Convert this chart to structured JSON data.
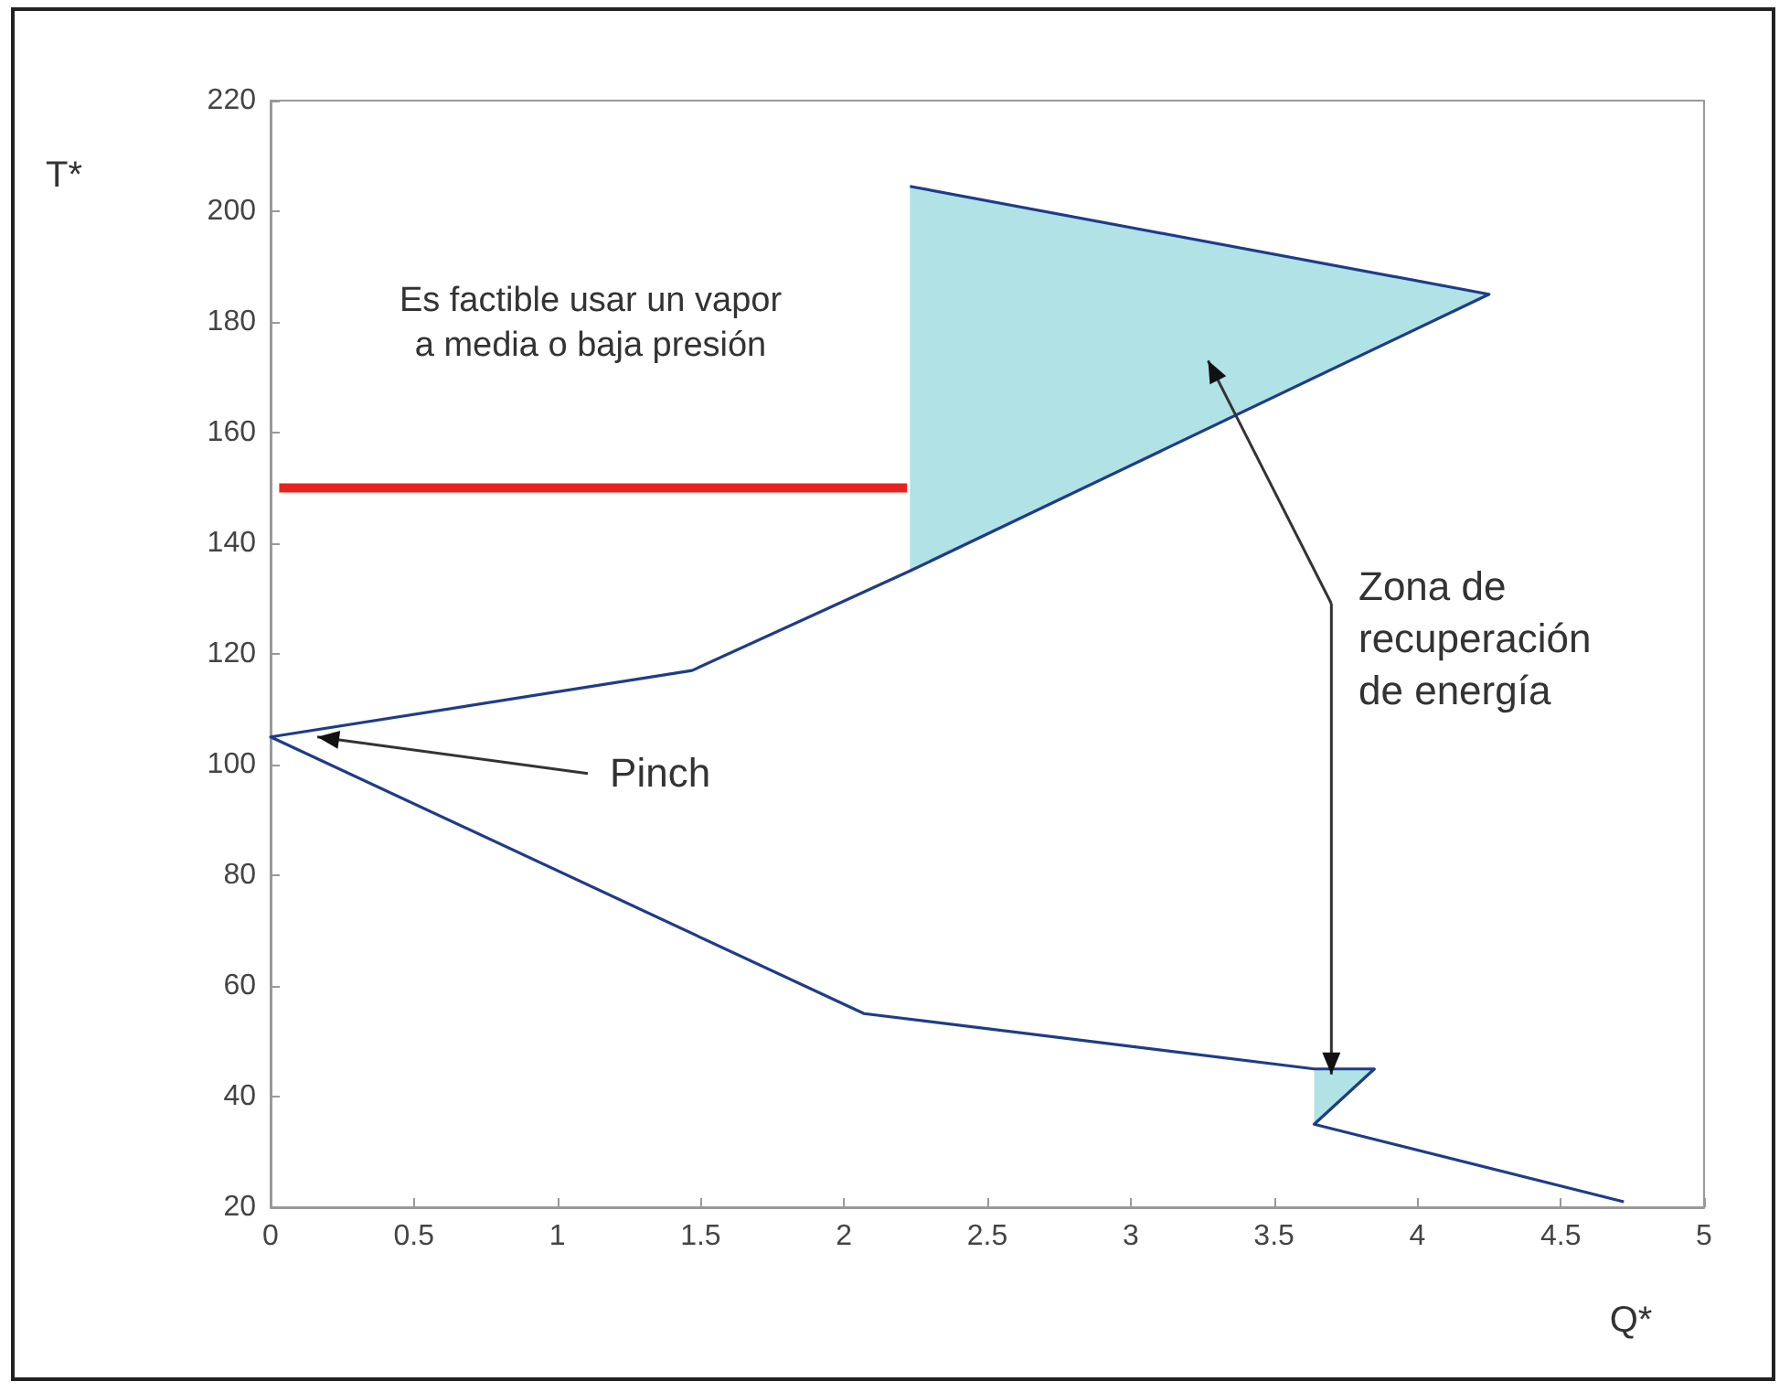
{
  "chart_data": {
    "type": "line",
    "xlabel": "Q*",
    "ylabel": "T*",
    "xlim": [
      0,
      5
    ],
    "xticks": [
      0,
      0.5,
      1,
      1.5,
      2,
      2.5,
      3,
      3.5,
      4,
      4.5,
      5
    ],
    "ylim": [
      20,
      220
    ],
    "yticks": [
      20,
      40,
      60,
      80,
      100,
      120,
      140,
      160,
      180,
      200,
      220
    ],
    "grid": false,
    "marker": "none",
    "line_style": "solid",
    "series": [
      {
        "type": "area",
        "color": "#b0e2e6",
        "x": [
          2.23,
          4.25,
          2.23
        ],
        "values": [
          204.5,
          185,
          135
        ]
      },
      {
        "type": "area",
        "color": "#b0e2e6",
        "x": [
          3.64,
          3.85,
          3.64
        ],
        "values": [
          45,
          45,
          35
        ]
      },
      {
        "color": "#1f3c88",
        "x": [
          2.23,
          4.25,
          2.23,
          1.47,
          0,
          2.07,
          3.64,
          3.85,
          3.64,
          4.72
        ],
        "values": [
          204.5,
          185,
          135,
          117,
          105,
          55,
          45,
          45,
          35,
          21
        ]
      },
      {
        "color": "#e8231f",
        "x": [
          0.03,
          2.22
        ],
        "values": [
          150,
          150
        ]
      }
    ],
    "annotations": [
      "Es factible usar un vapor a media o baja presión",
      {
        "text": "Pinch",
        "x": 0.15,
        "y": 105
      },
      {
        "text": "Zona de recuperación de energía",
        "x": 3.7,
        "y": 44
      }
    ]
  }
}
